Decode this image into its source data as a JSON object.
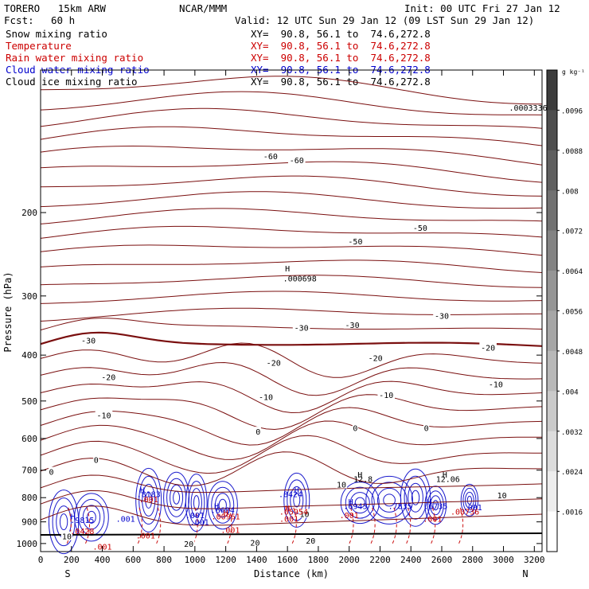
{
  "header": {
    "model": "TORERO   15km ARW",
    "center": "NCAR/MMM",
    "init": "Init: 00 UTC Fri 27 Jan 12",
    "fcst_label": "Fcst:",
    "fcst_value": "60 h",
    "valid": "Valid: 12 UTC Sun 29 Jan 12 (09 LST Sun 29 Jan 12)"
  },
  "fields": [
    {
      "label": "Snow mixing ratio",
      "color": "#000000",
      "xy": "XY=  90.8, 56.1 to  74.6,272.8",
      "xy_color": "#000000"
    },
    {
      "label": "Temperature",
      "color": "#cc0000",
      "xy": "XY=  90.8, 56.1 to  74.6,272.8",
      "xy_color": "#cc0000"
    },
    {
      "label": "Rain water mixing ratio",
      "color": "#cc0000",
      "xy": "XY=  90.8, 56.1 to  74.6,272.8",
      "xy_color": "#cc0000"
    },
    {
      "label": "Cloud water mixing ratio",
      "color": "#0000cc",
      "xy": "XY=  90.8, 56.1 to  74.6,272.8",
      "xy_color": "#0000cc"
    },
    {
      "label": "Cloud ice mixing ratio",
      "color": "#000000",
      "xy": "XY=  90.8, 56.1 to  74.6,272.8",
      "xy_color": "#000000"
    }
  ],
  "chart_data": {
    "type": "contour",
    "xlabel": "Distance (km)",
    "ylabel": "Pressure (hPa)",
    "x_ticks": [
      0,
      200,
      400,
      600,
      800,
      1000,
      1200,
      1400,
      1600,
      1800,
      2000,
      2200,
      2400,
      2600,
      2800,
      3000,
      3200
    ],
    "y_ticks": [
      200,
      300,
      400,
      500,
      600,
      700,
      800,
      900,
      1000
    ],
    "xlim": [
      0,
      3250
    ],
    "ylim": [
      1040,
      100
    ],
    "y_scale": "log",
    "end_labels": {
      "left": "S",
      "right": "N"
    },
    "colorbar": {
      "unit": "g kg⁻¹",
      "ticks": [
        ".0096",
        ".0088",
        ".008",
        ".0072",
        ".0064",
        ".0056",
        ".0048",
        ".004",
        ".0032",
        ".0024",
        ".0016"
      ],
      "top_value": ".0096",
      "bottom_value": ".0016"
    },
    "temperature_contours": [
      {
        "label": "-60",
        "label_x": 1490,
        "label_p": 152
      },
      {
        "label": "-60",
        "label_x": 1660,
        "label_p": 155
      },
      {
        "label": "-50",
        "label_x": 2040,
        "label_p": 230
      },
      {
        "label": "-50",
        "label_x": 2460,
        "label_p": 215
      },
      {
        "label": "-30",
        "label_x": 310,
        "label_p": 372
      },
      {
        "label": "-30",
        "label_x": 1690,
        "label_p": 350
      },
      {
        "label": "-30",
        "label_x": 2020,
        "label_p": 345
      },
      {
        "label": "-30",
        "label_x": 2600,
        "label_p": 330
      },
      {
        "label": "-20",
        "label_x": 440,
        "label_p": 445
      },
      {
        "label": "-20",
        "label_x": 1510,
        "label_p": 415
      },
      {
        "label": "-20",
        "label_x": 2170,
        "label_p": 405
      },
      {
        "label": "-20",
        "label_x": 2900,
        "label_p": 385
      },
      {
        "label": "-10",
        "label_x": 410,
        "label_p": 535
      },
      {
        "label": "-10",
        "label_x": 1460,
        "label_p": 490
      },
      {
        "label": "-10",
        "label_x": 2240,
        "label_p": 485
      },
      {
        "label": "-10",
        "label_x": 2950,
        "label_p": 460
      },
      {
        "label": "0",
        "label_x": 70,
        "label_p": 705
      },
      {
        "label": "0",
        "label_x": 360,
        "label_p": 665
      },
      {
        "label": "0",
        "label_x": 1410,
        "label_p": 580
      },
      {
        "label": "0",
        "label_x": 2040,
        "label_p": 570
      },
      {
        "label": "0",
        "label_x": 2500,
        "label_p": 570
      },
      {
        "label": "10",
        "label_x": 1950,
        "label_p": 750
      },
      {
        "label": "10",
        "label_x": 2990,
        "label_p": 790
      },
      {
        "label": "10",
        "label_x": 1710,
        "label_p": 865
      },
      {
        "label": "10",
        "label_x": 170,
        "label_p": 965
      },
      {
        "label": "20",
        "label_x": 960,
        "label_p": 1000
      },
      {
        "label": "20",
        "label_x": 1390,
        "label_p": 995
      },
      {
        "label": "20",
        "label_x": 1750,
        "label_p": 985
      }
    ],
    "labels": [
      {
        "text": "H",
        "x": 1600,
        "p": 262,
        "color": "#000000"
      },
      {
        "text": ".000698",
        "x": 1680,
        "p": 275,
        "color": "#000000"
      },
      {
        "text": ".0003336",
        "x": 3160,
        "p": 120,
        "color": "#000000"
      },
      {
        "text": "H",
        "x": 2070,
        "p": 715,
        "color": "#000000"
      },
      {
        "text": "12.8",
        "x": 2090,
        "p": 730,
        "color": "#000000"
      },
      {
        "text": "H",
        "x": 2620,
        "p": 715,
        "color": "#000000"
      },
      {
        "text": "12.06",
        "x": 2640,
        "p": 730,
        "color": "#000000"
      },
      {
        "text": "H",
        "x": 660,
        "p": 770,
        "color": "#0000cc"
      },
      {
        "text": ".8183",
        "x": 700,
        "p": 785,
        "color": "#0000cc"
      },
      {
        "text": ".001",
        "x": 700,
        "p": 805,
        "color": "#cc0000"
      },
      {
        "text": "H",
        "x": 1660,
        "p": 770,
        "color": "#0000cc"
      },
      {
        "text": ".8424",
        "x": 1620,
        "p": 785,
        "color": "#0000cc"
      },
      {
        "text": "H",
        "x": 1140,
        "p": 832,
        "color": "#0000cc"
      },
      {
        "text": ".6684",
        "x": 1180,
        "p": 848,
        "color": "#0000cc"
      },
      {
        "text": "H",
        "x": 1600,
        "p": 840,
        "color": "#cc0000"
      },
      {
        "text": ".05954",
        "x": 1640,
        "p": 855,
        "color": "#cc0000"
      },
      {
        "text": "H",
        "x": 2010,
        "p": 815,
        "color": "#0000cc"
      },
      {
        "text": ".6943",
        "x": 2040,
        "p": 832,
        "color": "#0000cc"
      },
      {
        "text": ".001",
        "x": 2000,
        "p": 870,
        "color": "#cc0000"
      },
      {
        "text": ".7835",
        "x": 2330,
        "p": 832,
        "color": "#0000cc"
      },
      {
        "text": "H",
        "x": 2520,
        "p": 815,
        "color": "#0000cc"
      },
      {
        "text": ".6735",
        "x": 2560,
        "p": 832,
        "color": "#0000cc"
      },
      {
        "text": ".001",
        "x": 2800,
        "p": 838,
        "color": "#0000cc"
      },
      {
        "text": ".00736",
        "x": 2750,
        "p": 855,
        "color": "#cc0000"
      },
      {
        "text": "H",
        "x": 1200,
        "p": 860,
        "color": "#cc0000"
      },
      {
        "text": ".00961",
        "x": 1200,
        "p": 875,
        "color": "#cc0000"
      },
      {
        "text": ".001",
        "x": 1000,
        "p": 870,
        "color": "#0000cc"
      },
      {
        "text": ".001",
        "x": 550,
        "p": 885,
        "color": "#0000cc"
      },
      {
        "text": "H",
        "x": 210,
        "p": 875,
        "color": "#0000cc"
      },
      {
        "text": ".9815",
        "x": 270,
        "p": 890,
        "color": "#0000cc"
      },
      {
        "text": ".001",
        "x": 1030,
        "p": 900,
        "color": "#0000cc"
      },
      {
        "text": ".001",
        "x": 1610,
        "p": 885,
        "color": "#cc0000"
      },
      {
        "text": ".001",
        "x": 2540,
        "p": 885,
        "color": "#cc0000"
      },
      {
        "text": ".0428",
        "x": 270,
        "p": 940,
        "color": "#cc0000"
      },
      {
        "text": ".001",
        "x": 1230,
        "p": 935,
        "color": "#cc0000"
      },
      {
        "text": ".001",
        "x": 680,
        "p": 960,
        "color": "#cc0000"
      },
      {
        "text": ".001",
        "x": 400,
        "p": 1015,
        "color": "#cc0000"
      }
    ]
  }
}
